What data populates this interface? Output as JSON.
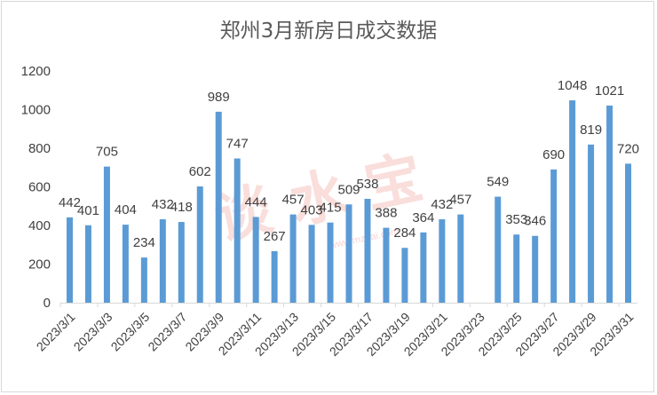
{
  "chart_data": {
    "type": "bar",
    "title": "郑州3月新房日成交数据",
    "xlabel": "",
    "ylabel": "",
    "ylim": [
      0,
      1200
    ],
    "yticks": [
      0,
      200,
      400,
      600,
      800,
      1000,
      1200
    ],
    "grid": false,
    "legend": "none",
    "bar_color": "#5b9bd5",
    "categories": [
      "2023/3/1",
      "2023/3/2",
      "2023/3/3",
      "2023/3/4",
      "2023/3/5",
      "2023/3/6",
      "2023/3/7",
      "2023/3/8",
      "2023/3/9",
      "2023/3/10",
      "2023/3/11",
      "2023/3/12",
      "2023/3/13",
      "2023/3/14",
      "2023/3/15",
      "2023/3/16",
      "2023/3/17",
      "2023/3/18",
      "2023/3/19",
      "2023/3/20",
      "2023/3/21",
      "2023/3/22",
      "2023/3/23",
      "2023/3/24",
      "2023/3/25",
      "2023/3/26",
      "2023/3/27",
      "2023/3/28",
      "2023/3/29",
      "2023/3/30",
      "2023/3/31"
    ],
    "tick_labels_shown": [
      "2023/3/1",
      "2023/3/3",
      "2023/3/5",
      "2023/3/7",
      "2023/3/9",
      "2023/3/11",
      "2023/3/13",
      "2023/3/15",
      "2023/3/17",
      "2023/3/19",
      "2023/3/21",
      "2023/3/23",
      "2023/3/25",
      "2023/3/27",
      "2023/3/29",
      "2023/3/31"
    ],
    "values": [
      442,
      401,
      705,
      404,
      234,
      432,
      418,
      602,
      989,
      747,
      444,
      267,
      457,
      403,
      415,
      509,
      538,
      388,
      284,
      364,
      432,
      457,
      null,
      549,
      353,
      346,
      690,
      1048,
      819,
      1021,
      720
    ]
  },
  "watermark": {
    "text": "谈 水 宝",
    "sub": "www.mzhai.com"
  }
}
